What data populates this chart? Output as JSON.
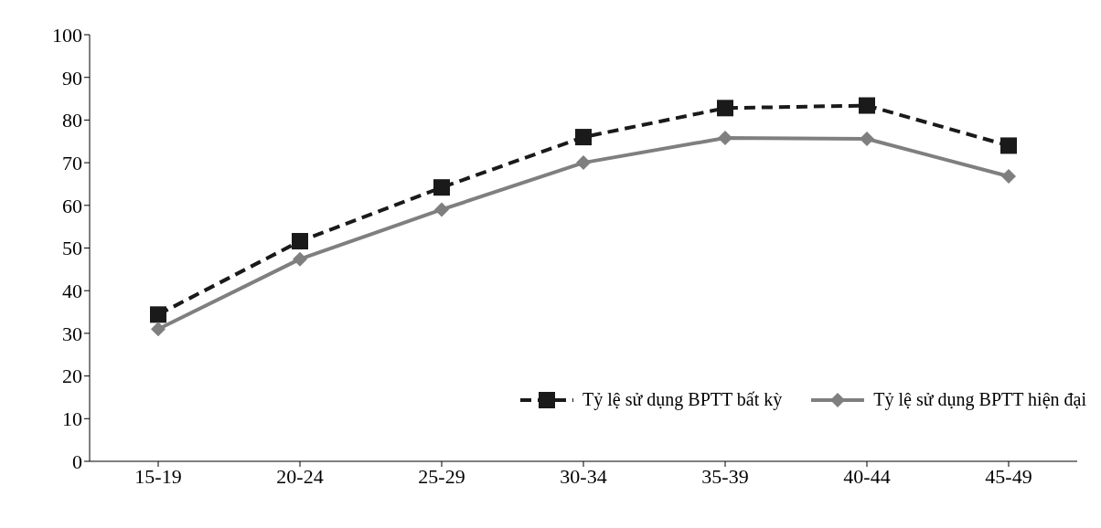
{
  "chart_data": {
    "type": "line",
    "categories": [
      "15-19",
      "20-24",
      "25-29",
      "30-34",
      "35-39",
      "40-44",
      "45-49"
    ],
    "series": [
      {
        "name": "Tỷ lệ sử dụng BPTT bất kỳ",
        "color": "#1a1a1a",
        "marker": "square",
        "line_style": "dashed",
        "values": [
          34.4,
          51.6,
          64.2,
          76,
          82.8,
          83.4,
          74
        ]
      },
      {
        "name": "Tỷ lệ sử dụng BPTT hiện đại",
        "color": "#7f7f7f",
        "marker": "diamond",
        "line_style": "solid",
        "values": [
          31,
          47.4,
          59,
          70,
          75.8,
          75.6,
          66.8
        ]
      }
    ],
    "ylim": [
      0,
      100
    ],
    "yticks": [
      0,
      10,
      20,
      30,
      40,
      50,
      60,
      70,
      80,
      90,
      100
    ],
    "grid": false,
    "legend": "bottom right"
  }
}
